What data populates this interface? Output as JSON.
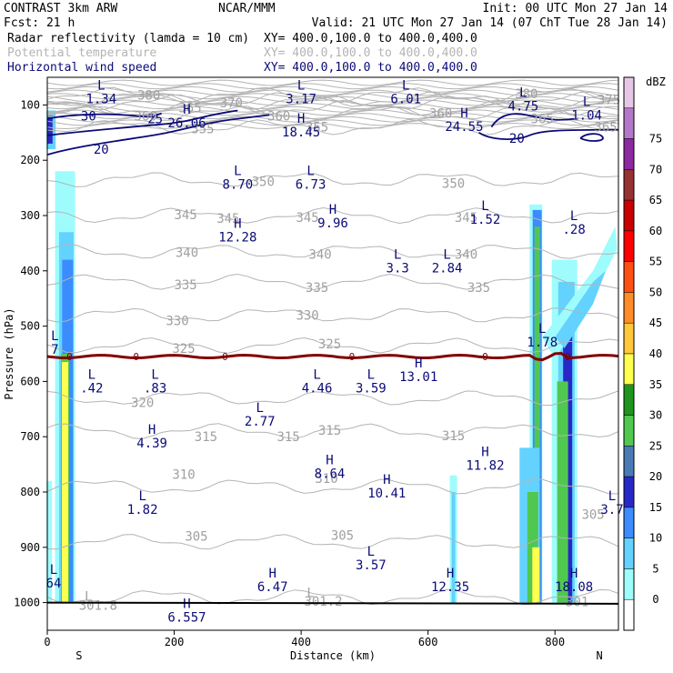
{
  "header": {
    "left_line1": "CONTRAST  3km ARW",
    "center_line1": "NCAR/MMM",
    "right_line1": "Init: 00 UTC Mon 27 Jan 14",
    "left_line2": "Fcst:    21 h",
    "right_line2": "Valid: 21 UTC Mon 27 Jan 14 (07 ChT Tue 28 Jan 14)"
  },
  "fields": [
    {
      "name": "Radar reflectivity (lamda = 10 cm)",
      "xy": "XY= 400.0,100.0 to 400.0,400.0",
      "color": "#000000"
    },
    {
      "name": "Potential temperature",
      "xy": "XY= 400.0,100.0 to 400.0,400.0",
      "color": "#b4b4b4"
    },
    {
      "name": "Horizontal wind speed",
      "xy": "XY= 400.0,100.0 to 400.0,400.0",
      "color": "#0a0a78"
    }
  ],
  "chart_data": {
    "type": "cross-section",
    "xlabel": "Distance (km)",
    "ylabel": "Pressure (hPa)",
    "xlim": [
      0,
      900
    ],
    "ylim": [
      1050,
      50
    ],
    "x_ticks": [
      0,
      200,
      400,
      600,
      800
    ],
    "y_ticks": [
      100,
      200,
      300,
      400,
      500,
      600,
      700,
      800,
      900,
      1000
    ],
    "x_end_labels": {
      "left": "S",
      "right": "N"
    },
    "colorbar": {
      "unit": "dBZ",
      "levels": [
        0,
        5,
        10,
        15,
        20,
        25,
        30,
        35,
        40,
        45,
        50,
        55,
        60,
        65,
        70,
        75
      ],
      "colors": [
        "#ffffff",
        "#9ffcfc",
        "#64d2ff",
        "#3c8cff",
        "#2828c8",
        "#4a7bb5",
        "#50c850",
        "#1e961e",
        "#ffff50",
        "#ffc83c",
        "#ff8c28",
        "#ff5014",
        "#ff0000",
        "#c80000",
        "#963232",
        "#8c28a0",
        "#b478c8",
        "#e6c8e6"
      ]
    },
    "freezing_level": {
      "label": "0",
      "pressure": 555,
      "color": "#800000"
    },
    "theta_contours": [
      {
        "value": 301,
        "pressure": 990
      },
      {
        "value": 305,
        "pressure": 890
      },
      {
        "value": 310,
        "pressure": 790
      },
      {
        "value": 315,
        "pressure": 690
      },
      {
        "value": 320,
        "pressure": 630
      },
      {
        "value": 325,
        "pressure": 535
      },
      {
        "value": 330,
        "pressure": 480
      },
      {
        "value": 335,
        "pressure": 420
      },
      {
        "value": 340,
        "pressure": 365
      },
      {
        "value": 345,
        "pressure": 300
      },
      {
        "value": 350,
        "pressure": 235
      },
      {
        "value": 355,
        "pressure": 140
      },
      {
        "value": 360,
        "pressure": 115
      },
      {
        "value": 365,
        "pressure": 105
      },
      {
        "value": 370,
        "pressure": 95
      },
      {
        "value": 375,
        "pressure": 90
      },
      {
        "value": 380,
        "pressure": 82
      }
    ],
    "theta_labels": [
      {
        "text": "380",
        "x": 160,
        "p": 82
      },
      {
        "text": "370",
        "x": 290,
        "p": 96
      },
      {
        "text": "365",
        "x": 225,
        "p": 105
      },
      {
        "text": "360",
        "x": 155,
        "p": 120
      },
      {
        "text": "355",
        "x": 425,
        "p": 140
      },
      {
        "text": "355",
        "x": 245,
        "p": 143
      },
      {
        "text": "360",
        "x": 365,
        "p": 120
      },
      {
        "text": "380",
        "x": 755,
        "p": 80
      },
      {
        "text": "375",
        "x": 885,
        "p": 90
      },
      {
        "text": "360",
        "x": 620,
        "p": 115
      },
      {
        "text": "365",
        "x": 780,
        "p": 125
      },
      {
        "text": "365",
        "x": 880,
        "p": 140
      },
      {
        "text": "350",
        "x": 340,
        "p": 238
      },
      {
        "text": "350",
        "x": 640,
        "p": 242
      },
      {
        "text": "345",
        "x": 218,
        "p": 298
      },
      {
        "text": "345",
        "x": 285,
        "p": 305
      },
      {
        "text": "345",
        "x": 410,
        "p": 303
      },
      {
        "text": "345",
        "x": 660,
        "p": 303
      },
      {
        "text": "340",
        "x": 220,
        "p": 367
      },
      {
        "text": "340",
        "x": 430,
        "p": 370
      },
      {
        "text": "340",
        "x": 660,
        "p": 370
      },
      {
        "text": "335",
        "x": 218,
        "p": 425
      },
      {
        "text": "335",
        "x": 425,
        "p": 430
      },
      {
        "text": "335",
        "x": 680,
        "p": 430
      },
      {
        "text": "330",
        "x": 205,
        "p": 490
      },
      {
        "text": "330",
        "x": 410,
        "p": 480
      },
      {
        "text": "325",
        "x": 215,
        "p": 540
      },
      {
        "text": "325",
        "x": 445,
        "p": 532
      },
      {
        "text": "320",
        "x": 150,
        "p": 638
      },
      {
        "text": "315",
        "x": 250,
        "p": 700
      },
      {
        "text": "315",
        "x": 380,
        "p": 700
      },
      {
        "text": "315",
        "x": 445,
        "p": 688
      },
      {
        "text": "315",
        "x": 640,
        "p": 698
      },
      {
        "text": "310",
        "x": 215,
        "p": 768
      },
      {
        "text": "310",
        "x": 440,
        "p": 775
      },
      {
        "text": "305",
        "x": 235,
        "p": 880
      },
      {
        "text": "305",
        "x": 465,
        "p": 878
      },
      {
        "text": "305",
        "x": 860,
        "p": 840
      },
      {
        "text": "301.8",
        "x": 80,
        "p": 1005
      },
      {
        "text": "301.2",
        "x": 435,
        "p": 997
      },
      {
        "text": "301",
        "x": 835,
        "p": 998
      },
      {
        "text": "L",
        "x": 65,
        "p": 988
      },
      {
        "text": "L",
        "x": 415,
        "p": 982
      }
    ],
    "wind_contours": [
      {
        "value": 20,
        "label_x": 85,
        "label_p": 180
      },
      {
        "value": 25,
        "label_x": 170,
        "label_p": 125
      },
      {
        "value": 30,
        "label_x": 65,
        "label_p": 120
      },
      {
        "value": 20,
        "label_x": 740,
        "label_p": 160
      }
    ],
    "extrema": [
      {
        "type": "L",
        "value": "1.34",
        "x": 85,
        "p": 72
      },
      {
        "type": "L",
        "value": "3.17",
        "x": 400,
        "p": 72
      },
      {
        "type": "L",
        "value": "6.01",
        "x": 565,
        "p": 72
      },
      {
        "type": "L",
        "value": "4.75",
        "x": 750,
        "p": 85
      },
      {
        "type": "L",
        "value": "1.04",
        "x": 850,
        "p": 102
      },
      {
        "type": "H",
        "value": "26.06",
        "x": 220,
        "p": 116
      },
      {
        "type": "H",
        "value": "18.45",
        "x": 400,
        "p": 132
      },
      {
        "type": "H",
        "value": "24.55",
        "x": 657,
        "p": 122
      },
      {
        "type": "L",
        "value": "8.70",
        "x": 300,
        "p": 227
      },
      {
        "type": "L",
        "value": "6.73",
        "x": 415,
        "p": 227
      },
      {
        "type": "L",
        "value": "1.52",
        "x": 690,
        "p": 290
      },
      {
        "type": "L",
        "value": ".28",
        "x": 830,
        "p": 308
      },
      {
        "type": "H",
        "value": "12.28",
        "x": 300,
        "p": 322
      },
      {
        "type": "H",
        "value": "9.96",
        "x": 450,
        "p": 297
      },
      {
        "type": "L",
        "value": "3.3",
        "x": 552,
        "p": 378
      },
      {
        "type": "L",
        "value": "2.84",
        "x": 630,
        "p": 378
      },
      {
        "type": "L",
        "value": "1.78",
        "x": 780,
        "p": 512
      },
      {
        "type": "L",
        "value": "7",
        "x": 12,
        "p": 525
      },
      {
        "type": "H",
        "value": "13.01",
        "x": 585,
        "p": 575
      },
      {
        "type": "L",
        "value": ".42",
        "x": 70,
        "p": 595
      },
      {
        "type": "L",
        "value": ".83",
        "x": 170,
        "p": 595
      },
      {
        "type": "L",
        "value": "4.46",
        "x": 425,
        "p": 595
      },
      {
        "type": "L",
        "value": "3.59",
        "x": 510,
        "p": 595
      },
      {
        "type": "L",
        "value": "2.77",
        "x": 335,
        "p": 655
      },
      {
        "type": "H",
        "value": "4.39",
        "x": 165,
        "p": 695
      },
      {
        "type": "H",
        "value": "8.64",
        "x": 445,
        "p": 750
      },
      {
        "type": "H",
        "value": "11.82",
        "x": 690,
        "p": 735
      },
      {
        "type": "H",
        "value": "10.41",
        "x": 535,
        "p": 785
      },
      {
        "type": "L",
        "value": "1.82",
        "x": 150,
        "p": 815
      },
      {
        "type": "L",
        "value": "3.7",
        "x": 890,
        "p": 815
      },
      {
        "type": "L",
        "value": "3.57",
        "x": 510,
        "p": 915
      },
      {
        "type": "H",
        "value": "6.47",
        "x": 355,
        "p": 955
      },
      {
        "type": "H",
        "value": "12.35",
        "x": 635,
        "p": 955
      },
      {
        "type": "H",
        "value": "18.08",
        "x": 830,
        "p": 955
      },
      {
        "type": "L",
        "value": "64",
        "x": 10,
        "p": 948
      },
      {
        "type": "H",
        "value": "6.557",
        "x": 220,
        "p": 1010
      }
    ]
  }
}
